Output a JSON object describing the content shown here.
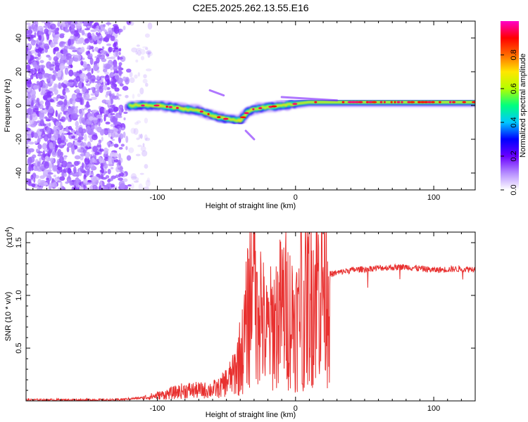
{
  "title": "C2E5.2025.262.13.55.E16",
  "chart_data": [
    {
      "type": "heatmap",
      "name": "spectrogram",
      "xlabel": "Height of straight line (km)",
      "ylabel": "Frequency (Hz)",
      "xlim": [
        -195,
        130
      ],
      "ylim": [
        -50,
        50
      ],
      "x_ticks": [
        -100,
        0,
        100
      ],
      "x_tick_labels": [
        "-100",
        "0",
        "100"
      ],
      "y_ticks": [
        -40,
        -20,
        0,
        20,
        40
      ],
      "y_tick_labels": [
        "-40",
        "-20",
        "0",
        "20",
        "40"
      ],
      "colorbar": {
        "label": "Normalized spectral amplitude",
        "range": [
          0,
          1
        ],
        "ticks": [
          0.0,
          0.2,
          0.4,
          0.6,
          0.8
        ],
        "tick_labels": [
          "0.0",
          "0.2",
          "0.4",
          "0.6",
          "0.8"
        ],
        "colors": [
          "#ffffff",
          "#b58cff",
          "#6a00ff",
          "#0000ff",
          "#00c8ff",
          "#00ff7f",
          "#b4ff00",
          "#ffe600",
          "#ff6a00",
          "#ff0000",
          "#ff00c8"
        ]
      },
      "noise_region_x": [
        -195,
        -105
      ],
      "signal_track": [
        {
          "x": -120,
          "y": 0
        },
        {
          "x": -110,
          "y": 0
        },
        {
          "x": -100,
          "y": 0
        },
        {
          "x": -90,
          "y": -1
        },
        {
          "x": -80,
          "y": -2
        },
        {
          "x": -70,
          "y": -3
        },
        {
          "x": -60,
          "y": -6
        },
        {
          "x": -50,
          "y": -8
        },
        {
          "x": -40,
          "y": -9
        },
        {
          "x": -35,
          "y": -4
        },
        {
          "x": -30,
          "y": -2
        },
        {
          "x": -20,
          "y": -1
        },
        {
          "x": -10,
          "y": 0
        },
        {
          "x": 0,
          "y": 1
        },
        {
          "x": 10,
          "y": 2
        },
        {
          "x": 30,
          "y": 2
        },
        {
          "x": 60,
          "y": 2
        },
        {
          "x": 90,
          "y": 2
        },
        {
          "x": 130,
          "y": 2
        }
      ]
    },
    {
      "type": "line",
      "name": "snr",
      "xlabel": "Height of straight line (km)",
      "ylabel": "SNR (10 * v/v)",
      "y_multiplier": "(x10",
      "y_multiplier_exp": "4",
      "y_multiplier_close": ")",
      "xlim": [
        -195,
        130
      ],
      "ylim": [
        0,
        1.6
      ],
      "x_ticks": [
        -100,
        0,
        100
      ],
      "x_tick_labels": [
        "-100",
        "0",
        "100"
      ],
      "y_ticks": [
        0.5,
        1.0,
        1.5
      ],
      "y_tick_labels": [
        "0.5",
        "1.0",
        "1.5"
      ],
      "color": "#e8302f",
      "series_envelope": [
        {
          "x": -195,
          "y": 0.01
        },
        {
          "x": -130,
          "y": 0.01
        },
        {
          "x": -110,
          "y": 0.03
        },
        {
          "x": -95,
          "y": 0.06
        },
        {
          "x": -80,
          "y": 0.1
        },
        {
          "x": -65,
          "y": 0.1
        },
        {
          "x": -55,
          "y": 0.12
        },
        {
          "x": -45,
          "y": 0.25
        },
        {
          "x": -38,
          "y": 0.5
        },
        {
          "x": -33,
          "y": 0.95
        },
        {
          "x": -28,
          "y": 1.2
        },
        {
          "x": -22,
          "y": 0.6
        },
        {
          "x": -15,
          "y": 0.75
        },
        {
          "x": -8,
          "y": 0.9
        },
        {
          "x": -3,
          "y": 0.8
        },
        {
          "x": 3,
          "y": 0.75
        },
        {
          "x": 8,
          "y": 0.95
        },
        {
          "x": 15,
          "y": 1.1
        },
        {
          "x": 25,
          "y": 1.2
        },
        {
          "x": 40,
          "y": 1.24
        },
        {
          "x": 60,
          "y": 1.26
        },
        {
          "x": 80,
          "y": 1.27
        },
        {
          "x": 100,
          "y": 1.24
        },
        {
          "x": 115,
          "y": 1.25
        },
        {
          "x": 130,
          "y": 1.25
        }
      ],
      "spikes": [
        {
          "x": -31,
          "y": 1.27
        },
        {
          "x": -28,
          "y": 1.22
        },
        {
          "x": 4,
          "y": 1.6
        },
        {
          "x": 5,
          "y": 0.16
        }
      ]
    }
  ]
}
